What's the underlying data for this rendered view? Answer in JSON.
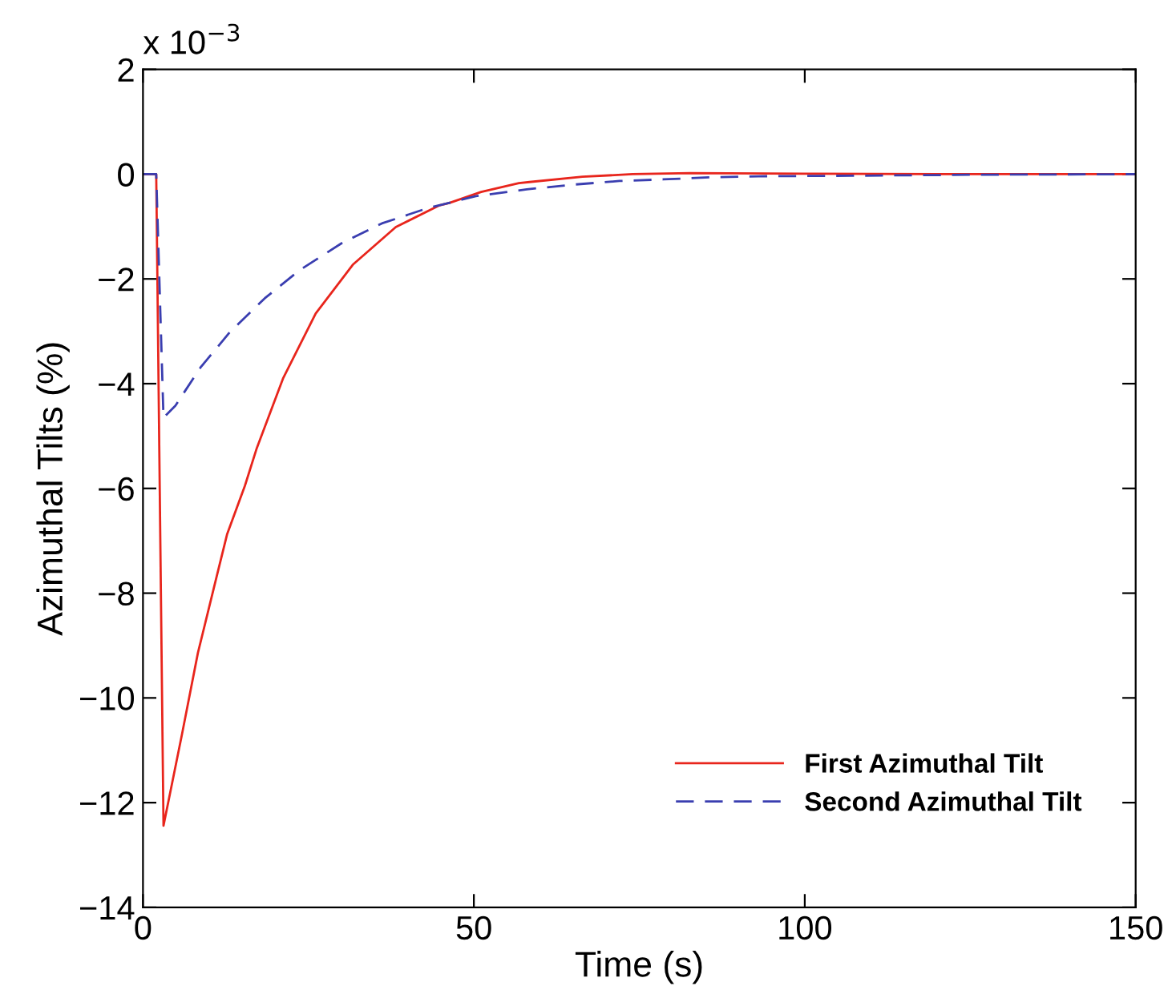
{
  "chart_data": {
    "type": "line",
    "xlabel": "Time (s)",
    "ylabel": "Azimuthal Tilts (%)",
    "annotations": [
      "x 10$^{−3}$"
    ],
    "xlim": [
      0,
      150
    ],
    "xticks": [
      0,
      50,
      100,
      150
    ],
    "ylim": [
      -14,
      2
    ],
    "yticks": [
      -14,
      -12,
      -10,
      -8,
      -6,
      -4,
      -2,
      0,
      2
    ],
    "grid": false,
    "legend": "bottom right",
    "series": [
      {
        "name": "First Azimuthal Tilt",
        "color": "#e8251c",
        "line_style": "solid",
        "x": [
          0,
          2.0,
          3.1,
          5.9,
          8.3,
          11.1,
          12.7,
          15.4,
          17.2,
          21.2,
          26.1,
          31.7,
          38.2,
          44.7,
          46.3,
          51.1,
          56.8,
          58.4,
          66.4,
          74,
          82.7,
          100,
          120,
          150
        ],
        "values": [
          0,
          0,
          -12.44,
          -10.69,
          -9.14,
          -7.7,
          -6.88,
          -5.95,
          -5.23,
          -3.89,
          -2.66,
          -1.73,
          -1.01,
          -0.6,
          -0.55,
          -0.34,
          -0.17,
          -0.15,
          -0.05,
          0,
          0.02,
          0.01,
          0,
          0
        ]
      },
      {
        "name": "Second Azimuthal Tilt",
        "color": "#3a3eb0",
        "line_style": "dashed",
        "x": [
          0,
          2.0,
          3.1,
          4.9,
          8.7,
          13.1,
          18.4,
          23.7,
          30,
          36.1,
          43,
          50.3,
          58,
          65,
          72,
          78.6,
          85.8,
          93,
          107,
          127,
          150
        ],
        "values": [
          0,
          0,
          -4.65,
          -4.42,
          -3.69,
          -3.02,
          -2.37,
          -1.83,
          -1.32,
          -0.94,
          -0.65,
          -0.42,
          -0.29,
          -0.2,
          -0.13,
          -0.1,
          -0.06,
          -0.04,
          -0.03,
          -0.01,
          0
        ]
      }
    ]
  }
}
